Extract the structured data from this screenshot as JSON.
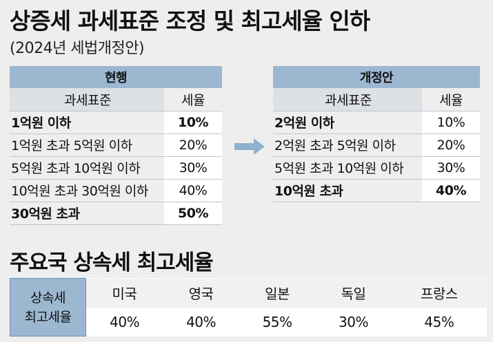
{
  "title": "상증세 과세표준 조정 및 최고세율 인하",
  "subtitle": "(2024년 세법개정안)",
  "current": {
    "heading": "현행",
    "col_base": "과세표준",
    "col_rate": "세율",
    "rows": [
      {
        "base": "1억원 이하",
        "rate": "10%"
      },
      {
        "base": "1억원 초과 5억원 이하",
        "rate": "20%"
      },
      {
        "base": "5억원 초과 10억원 이하",
        "rate": "30%"
      },
      {
        "base": "10억원 초과 30억원 이하",
        "rate": "40%"
      },
      {
        "base": "30억원 초과",
        "rate": "50%"
      }
    ]
  },
  "revised": {
    "heading": "개정안",
    "col_base": "과세표준",
    "col_rate": "세율",
    "rows": [
      {
        "base": "2억원 이하",
        "rate": "10%"
      },
      {
        "base": "2억원 초과 5억원 이하",
        "rate": "20%"
      },
      {
        "base": "5억원 초과 10억원 이하",
        "rate": "30%"
      },
      {
        "base": "10억원 초과",
        "rate": "40%"
      }
    ]
  },
  "intl": {
    "section_title": "주요국 상속세 최고세율",
    "row_label_1": "상속세",
    "row_label_2": "최고세율",
    "countries": [
      "미국",
      "영국",
      "일본",
      "독일",
      "프랑스"
    ],
    "rates": [
      "40%",
      "40%",
      "55%",
      "30%",
      "45%"
    ]
  },
  "colors": {
    "header_blue": "#9cb7d0",
    "arrow": "#8fb0cf"
  }
}
